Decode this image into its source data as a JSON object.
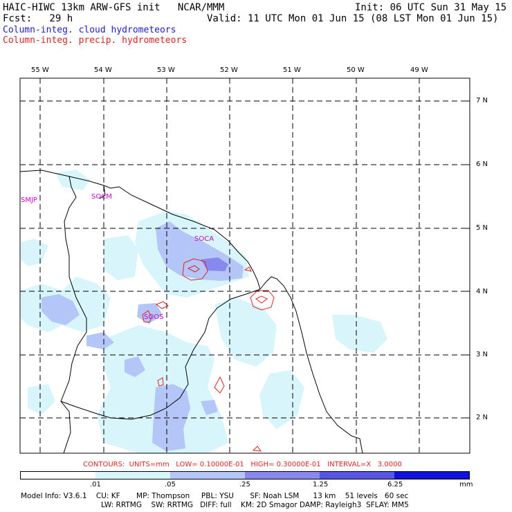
{
  "header": {
    "line1_left": "HAIC-HIWC 13km ARW-GFS init   NCAR/MMM",
    "line1_right": "Init: 06 UTC Sun 31 May 15",
    "line2_left": "Fcst:   29 h",
    "line2_right": "Valid: 11 UTC Mon 01 Jun 15 (08 LST Mon 01 Jun 15)",
    "field_blue": "Column-integ. cloud hydrometeors",
    "field_red": "Column-integ. precip. hydrometeors"
  },
  "longitude_labels": [
    "55 W",
    "54 W",
    "53 W",
    "52 W",
    "51 W",
    "50 W",
    "49 W"
  ],
  "latitude_labels": [
    "7 N",
    "6 N",
    "5 N",
    "4 N",
    "3 N",
    "2 N"
  ],
  "stations": [
    "SMJP",
    "SOCM",
    "SOCA",
    "SOOS"
  ],
  "contours_text": "CONTOURS:  UNITS=mm   LOW= 0.10000E-01   HIGH= 0.30000E-01   INTERVAL=X   3.0000",
  "colorbar": {
    "colors": [
      "#ffffff",
      "#d7f5fb",
      "#b4c5f7",
      "#8888ee",
      "#5555e6",
      "#1111dd"
    ],
    "ticks": [
      ".01",
      ".05",
      ".25",
      "1.25",
      "6.25"
    ],
    "units": "mm"
  },
  "model_info": {
    "line1": "Model Info: V3.6.1    CU: KF       MP: Thompson     PBL: YSU       SF: Noah LSM      13 km    51 levels   60 sec",
    "line2": "LW: RRTMG    SW: RRTMG   DIFF: full    KM: 2D Smagor DAMP: Rayleigh3  SFLAY: MM5"
  }
}
